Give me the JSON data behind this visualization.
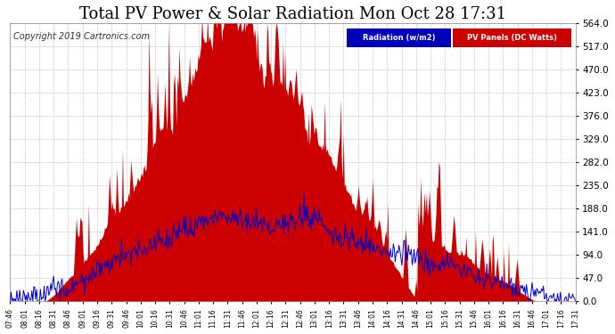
{
  "title": "Total PV Power & Solar Radiation Mon Oct 28 17:31",
  "copyright": "Copyright 2019 Cartronics.com",
  "legend_radiation": "Radiation (w/m2)",
  "legend_pv": "PV Panels (DC Watts)",
  "yticks": [
    0.0,
    47.0,
    94.0,
    141.0,
    188.0,
    235.0,
    282.0,
    329.0,
    376.0,
    423.0,
    470.0,
    517.0,
    564.0
  ],
  "xtick_labels": [
    "07:46",
    "08:01",
    "08:16",
    "08:31",
    "08:46",
    "09:01",
    "09:16",
    "09:31",
    "09:46",
    "10:01",
    "10:16",
    "10:31",
    "10:46",
    "11:01",
    "11:16",
    "11:31",
    "11:46",
    "12:01",
    "12:16",
    "12:31",
    "12:46",
    "13:01",
    "13:16",
    "13:31",
    "13:46",
    "14:01",
    "14:16",
    "14:31",
    "14:46",
    "15:01",
    "15:16",
    "15:31",
    "15:46",
    "16:01",
    "16:16",
    "16:31",
    "16:46",
    "17:01",
    "17:16",
    "17:31"
  ],
  "pv_color": "#cc0000",
  "radiation_color": "#0000cc",
  "bg_color": "#ffffff",
  "grid_color": "#c0c0c0",
  "title_color": "#000000",
  "title_fontsize": 13,
  "copyright_fontsize": 7,
  "axis_bg": "#ffffff",
  "ymax": 564.0
}
